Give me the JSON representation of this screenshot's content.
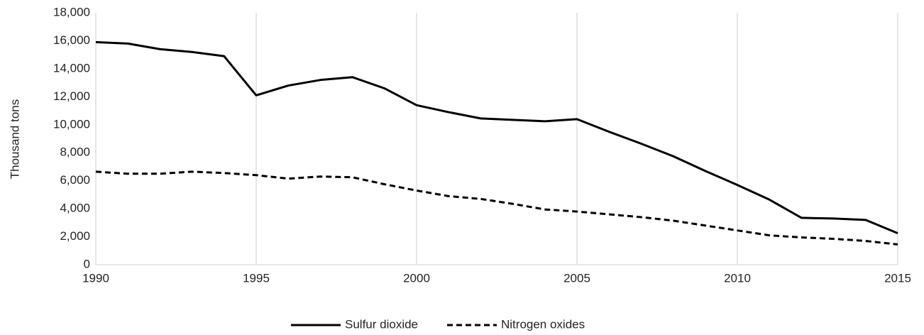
{
  "chart_data": {
    "type": "line",
    "y_label": "Thousand tons",
    "x": [
      1990,
      1991,
      1992,
      1993,
      1994,
      1995,
      1996,
      1997,
      1998,
      1999,
      2000,
      2001,
      2002,
      2003,
      2004,
      2005,
      2006,
      2007,
      2008,
      2009,
      2010,
      2011,
      2012,
      2013,
      2014,
      2015
    ],
    "series": [
      {
        "name": "Sulfur dioxide",
        "color": "#000000",
        "dash": "solid",
        "values": [
          15900,
          15800,
          15400,
          15200,
          14900,
          12100,
          12800,
          13200,
          13400,
          12600,
          11400,
          10900,
          10450,
          10350,
          10250,
          10400,
          9500,
          8650,
          7750,
          6700,
          5700,
          4650,
          3350,
          3300,
          3200,
          2250
        ]
      },
      {
        "name": "Nitrogen oxides",
        "color": "#000000",
        "dash": "dashed",
        "values": [
          6650,
          6500,
          6500,
          6650,
          6550,
          6400,
          6150,
          6300,
          6250,
          5750,
          5300,
          4900,
          4700,
          4350,
          3950,
          3800,
          3600,
          3400,
          3150,
          2800,
          2450,
          2100,
          1950,
          1850,
          1700,
          1450
        ]
      }
    ],
    "xlim": [
      1990,
      2015
    ],
    "xticks": [
      1990,
      1995,
      2000,
      2005,
      2010,
      2015
    ],
    "ylim": [
      0,
      18000
    ],
    "yticks": [
      0,
      {
        "value": 2000,
        "label": "2,000"
      },
      {
        "value": 4000,
        "label": "4,000"
      },
      {
        "value": 6000,
        "label": "6,000"
      },
      {
        "value": 8000,
        "label": "8,000"
      },
      {
        "value": 10000,
        "label": "10,000"
      },
      {
        "value": 12000,
        "label": "12,000"
      },
      {
        "value": 14000,
        "label": "14,000"
      },
      {
        "value": 16000,
        "label": "16,000"
      },
      {
        "value": 18000,
        "label": "18,000"
      }
    ],
    "grid": "x",
    "legend": "bottom"
  }
}
